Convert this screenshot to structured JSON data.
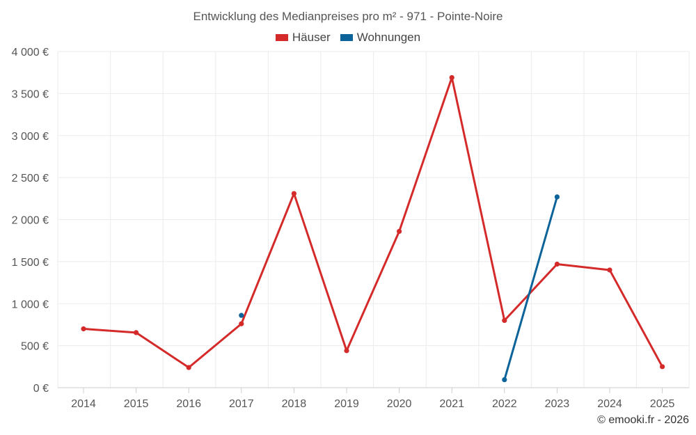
{
  "chart_data": {
    "type": "line",
    "title": "Entwicklung des Medianpreises pro m² - 971 - Pointe-Noire",
    "categories": [
      "2014",
      "2015",
      "2016",
      "2017",
      "2018",
      "2019",
      "2020",
      "2021",
      "2022",
      "2023",
      "2024",
      "2025"
    ],
    "series": [
      {
        "name": "Häuser",
        "color": "#d42a2a",
        "values": [
          700,
          655,
          240,
          760,
          2310,
          440,
          1860,
          3690,
          800,
          1470,
          1400,
          250
        ]
      },
      {
        "name": "Wohnungen",
        "color": "#0b6399",
        "values": [
          null,
          null,
          null,
          860,
          null,
          null,
          null,
          null,
          95,
          2270,
          null,
          null
        ]
      }
    ],
    "ylim": [
      0,
      4000
    ],
    "yticks": [
      0,
      500,
      1000,
      1500,
      2000,
      2500,
      3000,
      3500,
      4000
    ],
    "ytick_labels": [
      "0 €",
      "500 €",
      "1 000 €",
      "1 500 €",
      "2 000 €",
      "2 500 €",
      "3 000 €",
      "3 500 €",
      "4 000 €"
    ],
    "grid": true,
    "legend_position": "top-center",
    "credit": "© emooki.fr - 2026"
  }
}
